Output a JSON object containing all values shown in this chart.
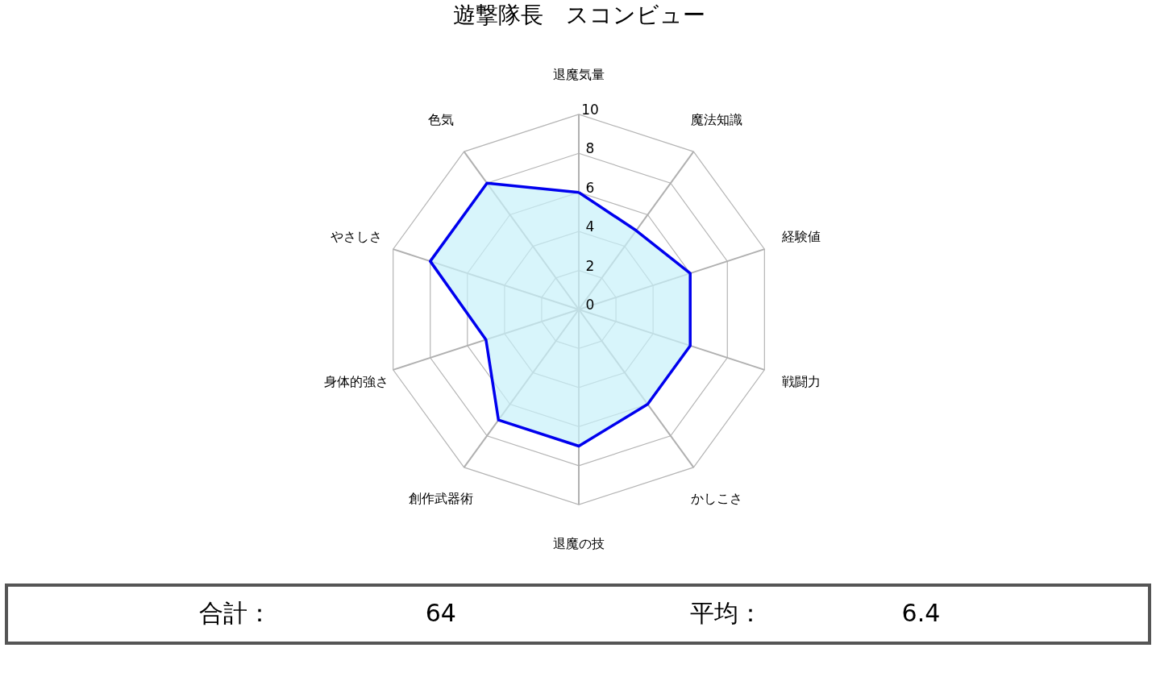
{
  "chart_data": {
    "type": "radar",
    "title": "遊撃隊長　スコンビュー",
    "categories": [
      "退魔気量",
      "魔法知識",
      "経験値",
      "戦闘力",
      "かしこさ",
      "退魔の技",
      "創作武器術",
      "身体的強さ",
      "やさしさ",
      "色気"
    ],
    "series": [
      {
        "color": "#0000ee",
        "values": [
          6,
          5,
          6,
          6,
          6,
          7,
          7,
          5,
          8,
          8
        ]
      }
    ],
    "ylim": [
      0,
      10
    ],
    "yticks": [
      0,
      2,
      4,
      6,
      8,
      10
    ],
    "grid": true,
    "annotations": [
      "合計：",
      "64",
      "平均：",
      "6.4"
    ]
  }
}
